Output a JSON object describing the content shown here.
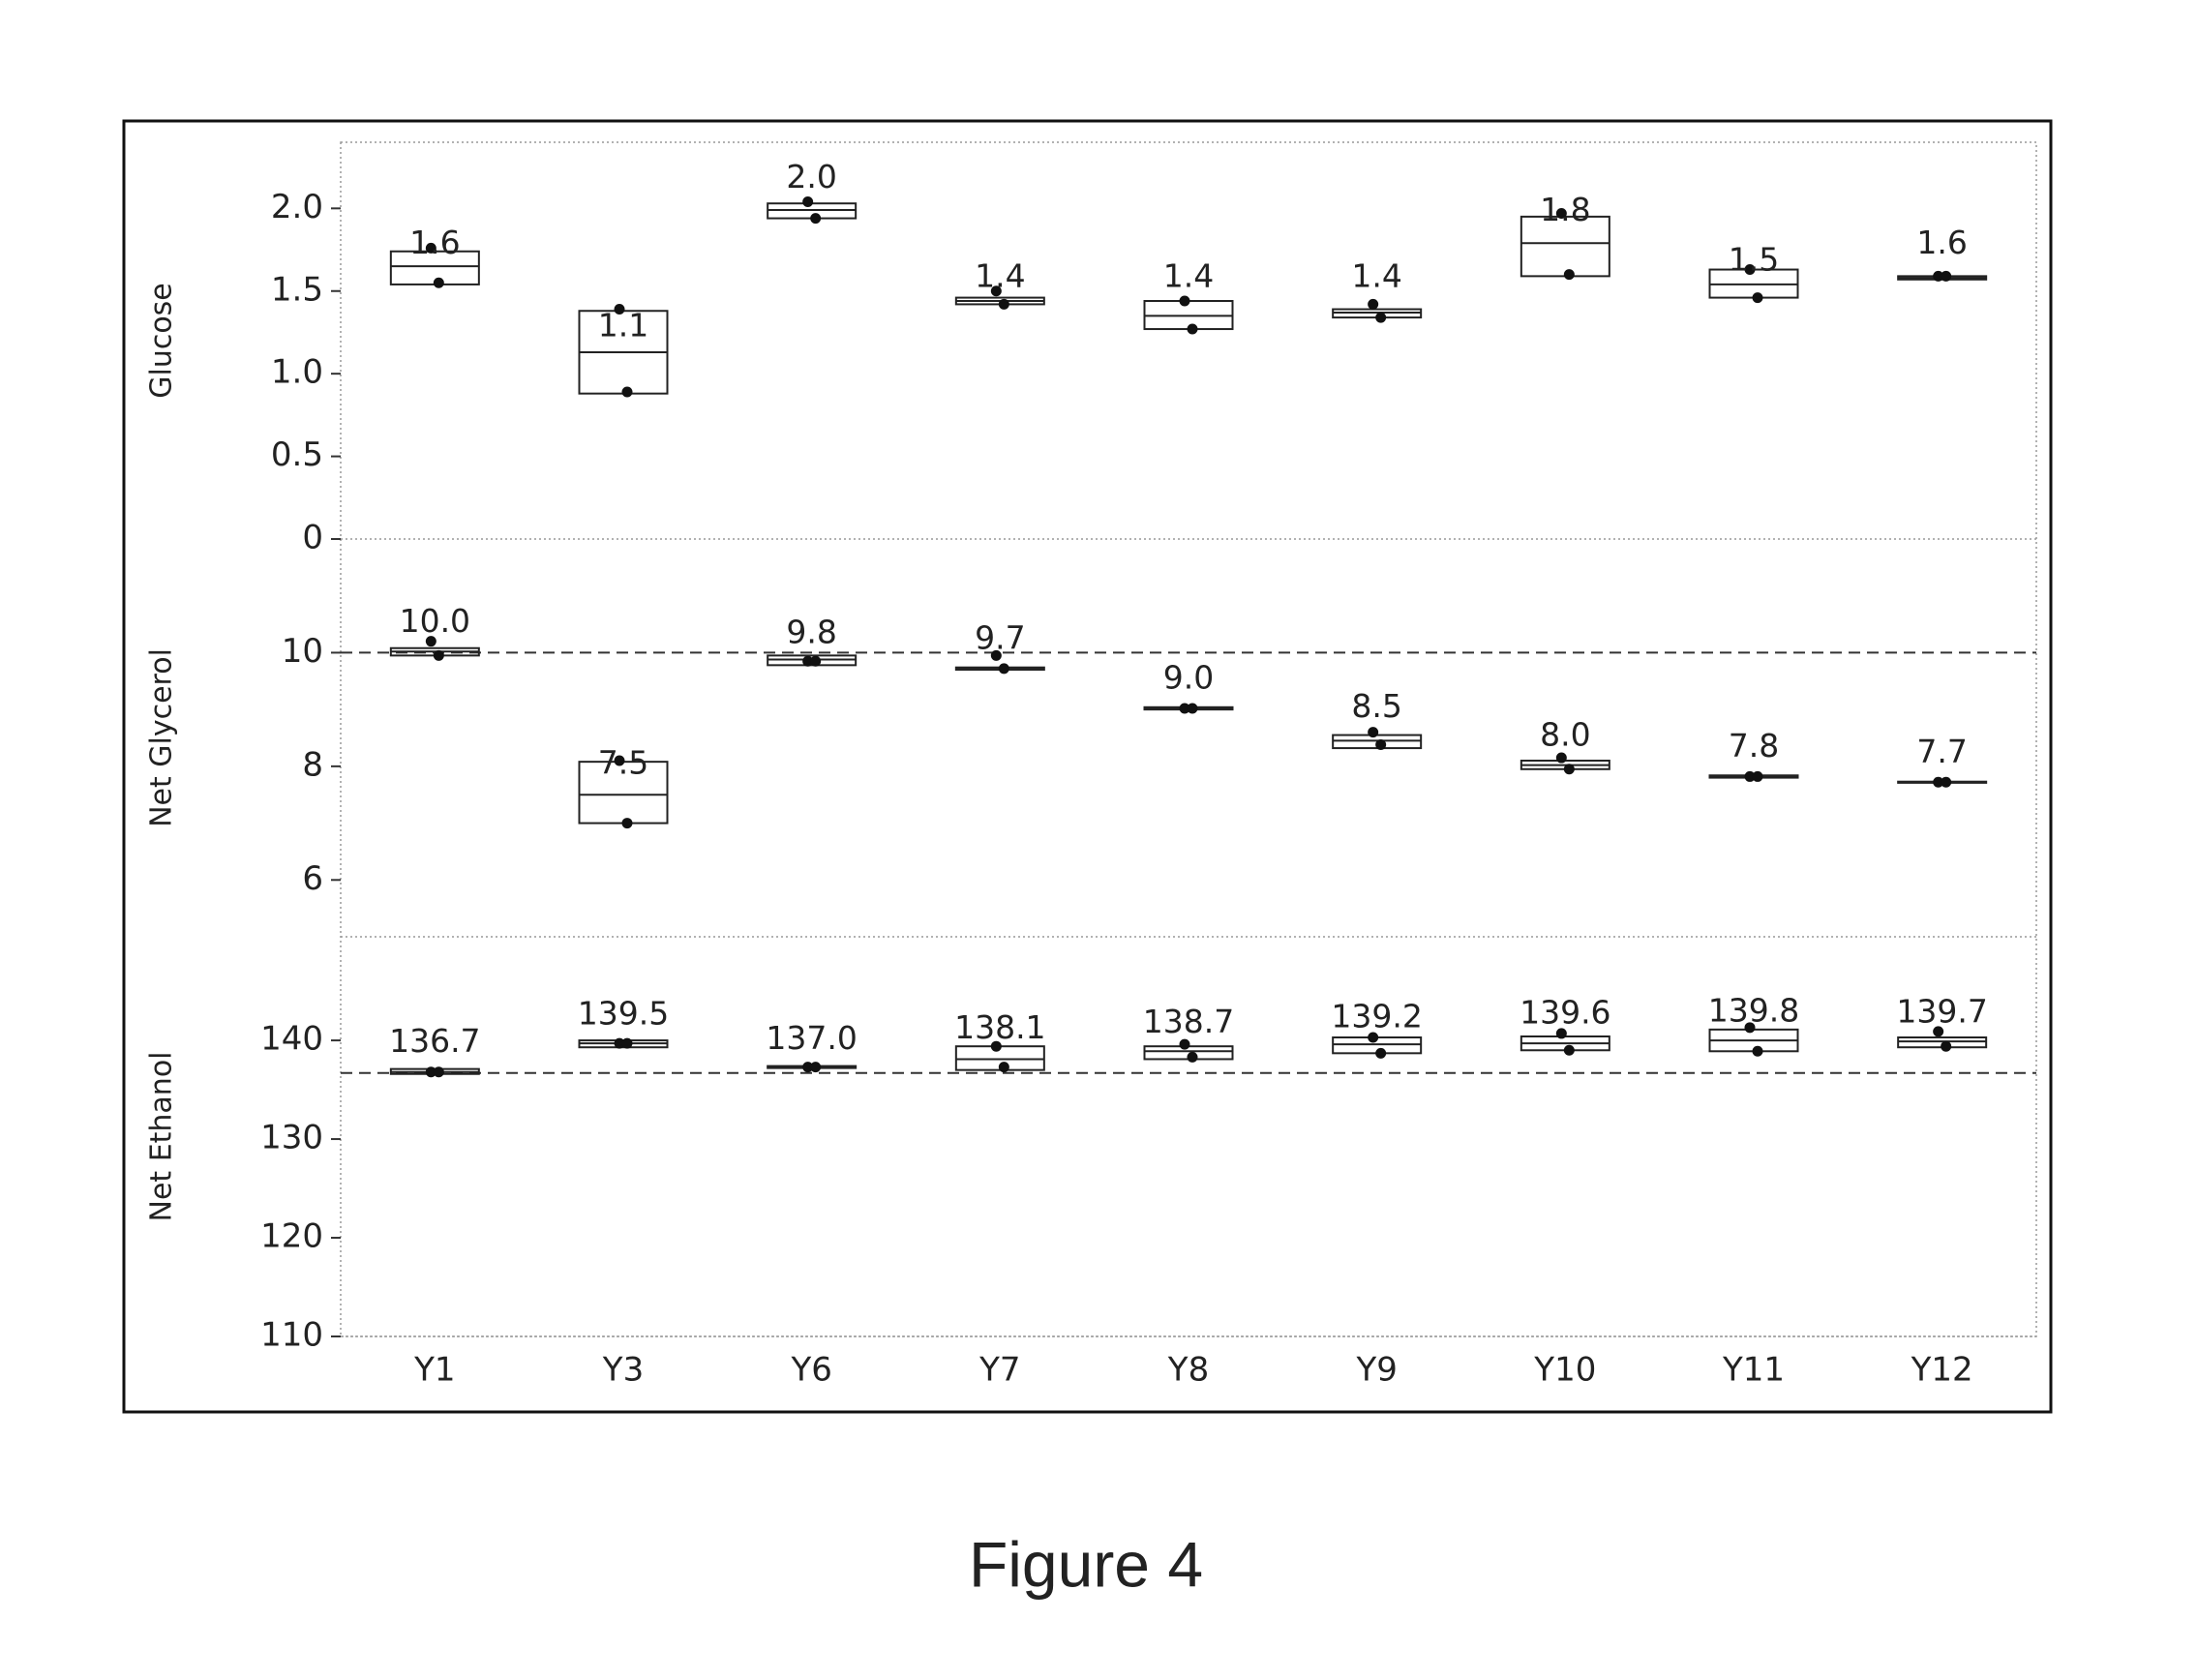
{
  "chart_data": {
    "type": "box",
    "caption": "Figure 4",
    "categories": [
      "Y1",
      "Y3",
      "Y6",
      "Y7",
      "Y8",
      "Y9",
      "Y10",
      "Y11",
      "Y12"
    ],
    "panels": [
      {
        "ylabel": "Glucose",
        "ylim": [
          0,
          2.4
        ],
        "yticks": [
          0,
          0.5,
          {
            "value": 1,
            "label": "1.0"
          },
          1.5,
          {
            "value": 2,
            "label": "2.0"
          }
        ],
        "q1": [
          1.54,
          0.88,
          1.94,
          1.42,
          1.27,
          1.34,
          1.59,
          1.46,
          1.57
        ],
        "median": [
          1.65,
          1.13,
          1.99,
          1.44,
          1.35,
          1.37,
          1.79,
          1.54,
          1.58
        ],
        "q3": [
          1.74,
          1.38,
          2.03,
          1.46,
          1.44,
          1.39,
          1.95,
          1.63,
          1.59
        ],
        "points": [
          [
            1.76,
            1.55
          ],
          [
            1.39,
            0.89
          ],
          [
            2.04,
            1.94
          ],
          [
            1.5,
            1.42
          ],
          [
            1.44,
            1.27
          ],
          [
            1.42,
            1.34
          ],
          [
            1.97,
            1.6
          ],
          [
            1.63,
            1.46
          ],
          [
            1.59,
            1.59
          ]
        ],
        "values": [
          1.6,
          1.1,
          2,
          1.4,
          1.4,
          1.4,
          1.8,
          1.5,
          1.6
        ],
        "value_labels": [
          "1.6",
          "1.1",
          "2.0",
          "1.4",
          "1.4",
          "1.4",
          "1.8",
          "1.5",
          "1.6"
        ]
      },
      {
        "ylabel": "Net Glycerol",
        "ylim": [
          5,
          12
        ],
        "yticks": [
          6,
          8,
          10
        ],
        "reference": 10,
        "q1": [
          9.95,
          7.0,
          9.78,
          9.7,
          9.0,
          8.32,
          7.95,
          7.8,
          7.71
        ],
        "median": [
          10.02,
          7.5,
          9.88,
          9.72,
          9.02,
          8.45,
          8.02,
          7.82,
          7.72
        ],
        "q3": [
          10.08,
          8.08,
          9.95,
          9.74,
          9.04,
          8.55,
          8.1,
          7.84,
          7.73
        ],
        "points": [
          [
            10.2,
            9.95
          ],
          [
            8.1,
            7.0
          ],
          [
            9.85,
            9.85
          ],
          [
            9.95,
            9.72
          ],
          [
            9.02,
            9.02
          ],
          [
            8.6,
            8.38
          ],
          [
            8.15,
            7.95
          ],
          [
            7.82,
            7.82
          ],
          [
            7.72,
            7.72
          ]
        ],
        "values": [
          10,
          7.5,
          9.8,
          9.7,
          9,
          8.5,
          8,
          7.8,
          7.7
        ],
        "value_labels": [
          "10.0",
          "7.5",
          "9.8",
          "9.7",
          "9.0",
          "8.5",
          "8.0",
          "7.8",
          "7.7"
        ]
      },
      {
        "ylabel": "Net Ethanol",
        "ylim": [
          110,
          150.5
        ],
        "yticks": [
          110,
          120,
          130,
          140
        ],
        "reference": 136.7,
        "q1": [
          136.6,
          139.3,
          137.2,
          137.0,
          138.1,
          138.7,
          139.0,
          138.9,
          139.3
        ],
        "median": [
          136.8,
          139.7,
          137.3,
          138.1,
          138.9,
          139.6,
          139.7,
          140.0,
          139.9
        ],
        "q3": [
          137.1,
          140.0,
          137.4,
          139.4,
          139.4,
          140.3,
          140.4,
          141.1,
          140.3
        ],
        "points": [
          [
            136.8,
            136.8
          ],
          [
            139.7,
            139.7
          ],
          [
            137.3,
            137.3
          ],
          [
            139.4,
            137.3
          ],
          [
            139.6,
            138.3
          ],
          [
            140.3,
            138.7
          ],
          [
            140.7,
            139.0
          ],
          [
            141.3,
            138.9
          ],
          [
            140.9,
            139.4
          ]
        ],
        "values": [
          136.7,
          139.5,
          137,
          138.1,
          138.7,
          139.2,
          139.6,
          139.8,
          139.7
        ],
        "value_labels": [
          "136.7",
          "139.5",
          "137.0",
          "138.1",
          "138.7",
          "139.2",
          "139.6",
          "139.8",
          "139.7"
        ]
      }
    ]
  }
}
